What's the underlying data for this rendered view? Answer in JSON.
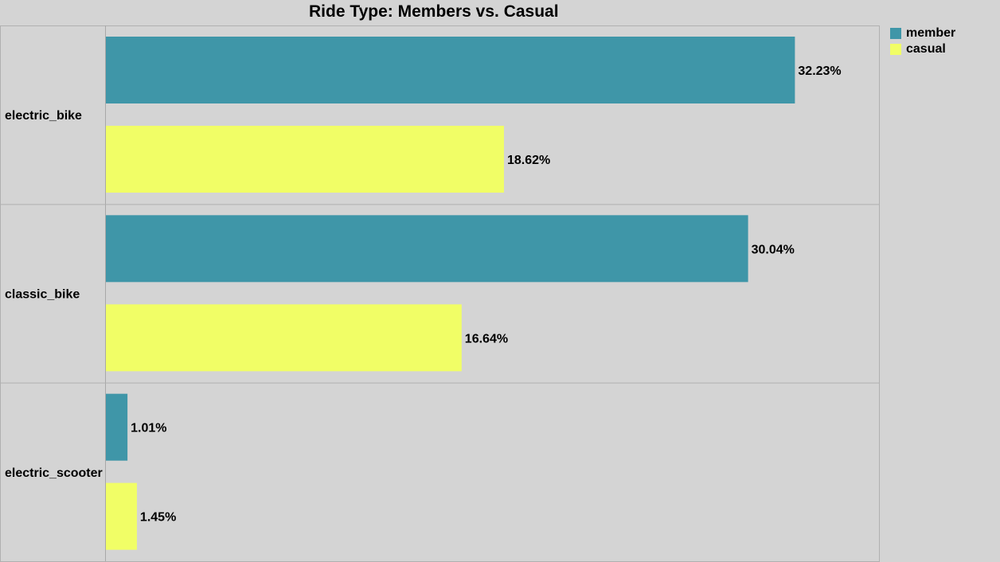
{
  "chart_data": {
    "type": "bar",
    "orientation": "horizontal",
    "title": "Ride Type: Members vs. Casual",
    "categories": [
      "electric_bike",
      "classic_bike",
      "electric_scooter"
    ],
    "series": [
      {
        "name": "member",
        "color": "#3f96a8",
        "values": [
          32.23,
          30.04,
          1.01
        ],
        "labels": [
          "32.23%",
          "30.04%",
          "1.01%"
        ]
      },
      {
        "name": "casual",
        "color": "#f1fe66",
        "values": [
          18.62,
          16.64,
          1.45
        ],
        "labels": [
          "18.62%",
          "16.64%",
          "1.45%"
        ]
      }
    ],
    "xlim": [
      0,
      36.2
    ],
    "grid": false,
    "legend_position": "top-right",
    "unit": "%"
  }
}
